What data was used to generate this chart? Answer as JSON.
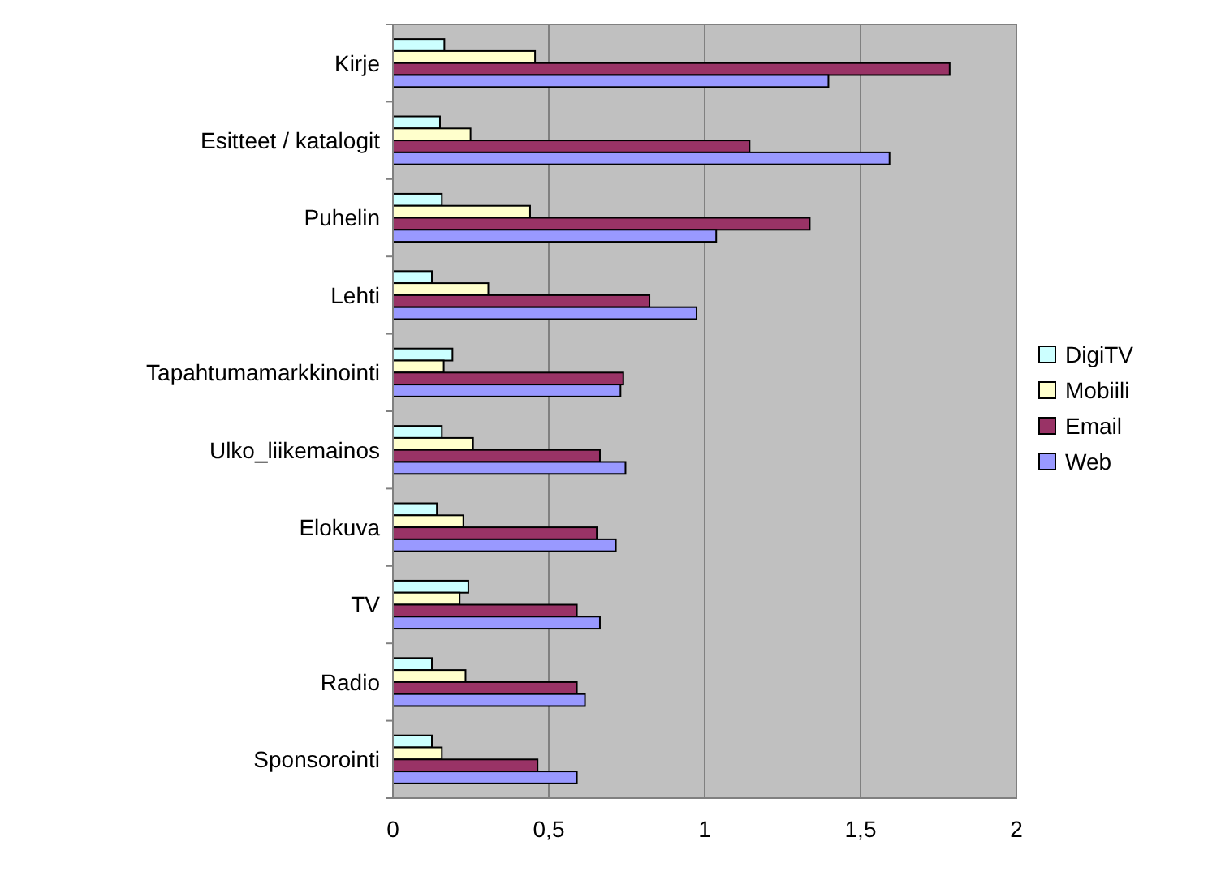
{
  "chart_data": {
    "type": "bar",
    "orientation": "horizontal",
    "categories": [
      "Kirje",
      "Esitteet / katalogit",
      "Puhelin",
      "Lehti",
      "Tapahtumamarkkinointi",
      "Ulko_liikemainos",
      "Elokuva",
      "TV",
      "Radio",
      "Sponsorointi"
    ],
    "series": [
      {
        "name": "DigiTV",
        "color": "#ccffff",
        "values": [
          0.165,
          0.151,
          0.157,
          0.125,
          0.191,
          0.157,
          0.141,
          0.242,
          0.125,
          0.125
        ]
      },
      {
        "name": "Mobiili",
        "color": "#ffffcc",
        "values": [
          0.456,
          0.249,
          0.44,
          0.306,
          0.163,
          0.257,
          0.226,
          0.214,
          0.233,
          0.157
        ]
      },
      {
        "name": "Email",
        "color": "#993366",
        "values": [
          1.786,
          1.144,
          1.337,
          0.823,
          0.739,
          0.664,
          0.654,
          0.59,
          0.59,
          0.464
        ]
      },
      {
        "name": "Web",
        "color": "#9999ff",
        "values": [
          1.397,
          1.593,
          1.037,
          0.974,
          0.73,
          0.746,
          0.715,
          0.664,
          0.616,
          0.59
        ]
      }
    ],
    "xlim": [
      0,
      2
    ],
    "xticks": [
      0,
      {
        "value": 0.5,
        "label": "0,5"
      },
      1,
      {
        "value": 1.5,
        "label": "1,5"
      },
      2
    ],
    "grid": "x",
    "legend": "right"
  }
}
